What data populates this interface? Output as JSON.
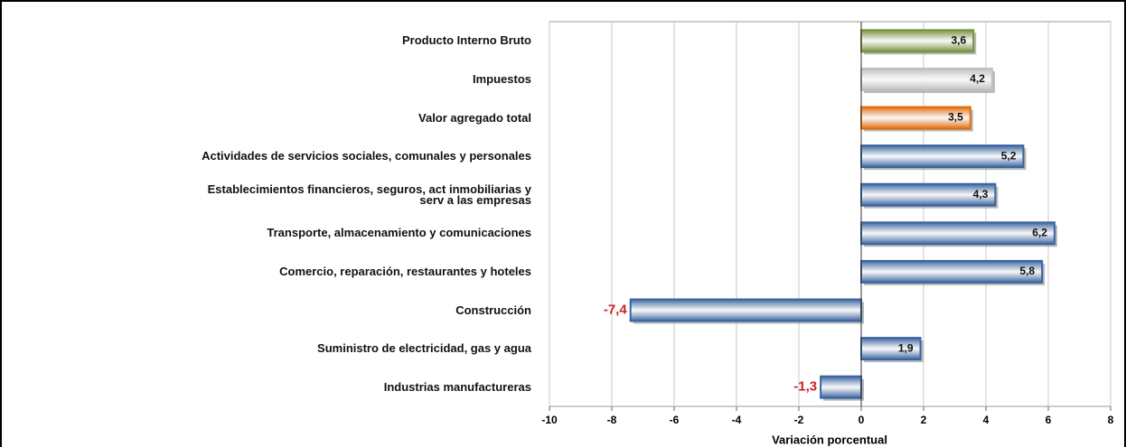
{
  "chart_data": {
    "type": "hbar",
    "xlabel": "Variación porcentual",
    "categories": [
      "Producto Interno Bruto",
      "Impuestos",
      "Valor agregado total",
      "Actividades de servicios sociales, comunales y personales",
      "Establecimientos financieros, seguros, act inmobiliarias y\nserv  a las empresas",
      "Transporte, almacenamiento y comunicaciones",
      "Comercio, reparación, restaurantes y hoteles",
      "Construcción",
      "Suministro de electricidad, gas y agua",
      "Industrias manufactureras"
    ],
    "values": [
      3.6,
      4.2,
      3.5,
      5.2,
      4.3,
      6.2,
      5.8,
      -7.4,
      1.9,
      -1.3
    ],
    "value_labels": [
      "3,6",
      "4,2",
      "3,5",
      "5,2",
      "4,3",
      "6,2",
      "5,8",
      "-7,4",
      "1,9",
      "-1,3"
    ],
    "colors": [
      "#77933c",
      "#bfbfbf",
      "#e46c0a",
      "#3a64a0",
      "#3a64a0",
      "#3a64a0",
      "#3a64a0",
      "#3a64a0",
      "#3a64a0",
      "#3a64a0"
    ],
    "negative_label_color": "#cc2222",
    "xlim": [
      -10,
      8
    ],
    "xticks": [
      -10,
      -8,
      -6,
      -4,
      -2,
      0,
      2,
      4,
      6,
      8
    ],
    "grid": true
  }
}
